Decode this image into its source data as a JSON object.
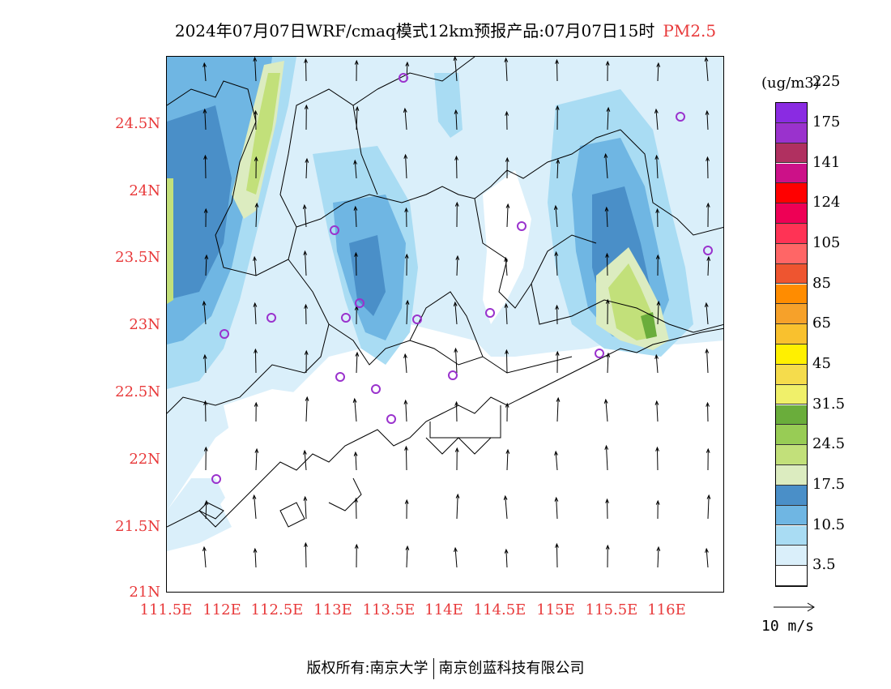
{
  "title": {
    "text": "2024年07月07日WRF/cmaq模式12km预报产品:07月07日15时",
    "species": "PM2.5"
  },
  "axes": {
    "y_labels": [
      "24.5N",
      "24N",
      "23.5N",
      "23N",
      "22.5N",
      "22N",
      "21.5N",
      "21N"
    ],
    "x_labels": [
      "111.5E",
      "112E",
      "112.5E",
      "113E",
      "113.5E",
      "114E",
      "114.5E",
      "115E",
      "115.5E",
      "116E"
    ]
  },
  "colorbar": {
    "unit": "(ug/m3)",
    "colors": [
      "#ffffff",
      "#daeffa",
      "#a9dcf3",
      "#6fb6e3",
      "#4a8fc8",
      "#dcecc0",
      "#c2e07a",
      "#98cc55",
      "#6aad3b",
      "#f0f06a",
      "#f5dc4c",
      "#fff000",
      "#f9c12e",
      "#f6a12a",
      "#ff8c00",
      "#ee5530",
      "#ff6666",
      "#ff3355",
      "#ee0055",
      "#ff0000",
      "#cc1188",
      "#b03060",
      "#9a32cd",
      "#8a2be2"
    ],
    "labels": [
      "3.5",
      "10.5",
      "17.5",
      "24.5",
      "31.5",
      "45",
      "65",
      "85",
      "105",
      "124",
      "141",
      "175",
      "225"
    ]
  },
  "wind_reference": {
    "label": "10  m/s"
  },
  "footer": {
    "left": "版权所有:南京大学",
    "right": "南京创蓝科技有限公司"
  }
}
